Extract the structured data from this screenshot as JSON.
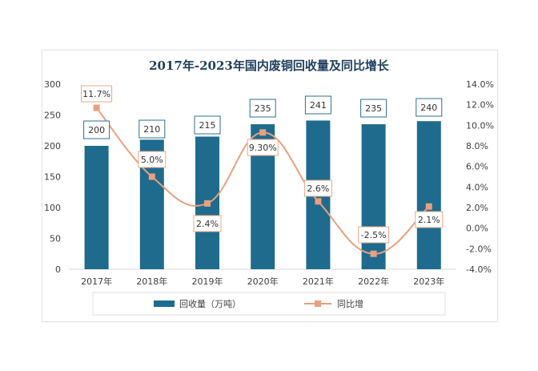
{
  "chart_data": {
    "type": "bar+line",
    "title": "2017年-2023年国内废铜回收量及同比增长",
    "categories": [
      "2017年",
      "2018年",
      "2019年",
      "2020年",
      "2021年",
      "2022年",
      "2023年"
    ],
    "series": [
      {
        "name": "回收量（万吨）",
        "type": "bar",
        "axis": "left",
        "values": [
          200,
          210,
          215,
          235,
          241,
          235,
          240
        ],
        "labels": [
          "200",
          "210",
          "215",
          "235",
          "241",
          "235",
          "240"
        ],
        "color": "#1f6b8e"
      },
      {
        "name": "同比增",
        "type": "line",
        "axis": "right",
        "values": [
          11.7,
          5.0,
          2.4,
          9.3,
          2.6,
          -2.5,
          2.1
        ],
        "labels": [
          "11.7%",
          "5.0%",
          "2.4%",
          "9.30%",
          "2.6%",
          "-2.5%",
          "2.1%"
        ],
        "color": "#e8a080"
      }
    ],
    "y_left": {
      "range": [
        0,
        300
      ],
      "ticks": [
        "0",
        "50",
        "100",
        "150",
        "200",
        "250",
        "300"
      ]
    },
    "y_right": {
      "range": [
        -4,
        14
      ],
      "ticks": [
        "-4.0%",
        "-2.0%",
        "0.0%",
        "2.0%",
        "4.0%",
        "6.0%",
        "8.0%",
        "10.0%",
        "12.0%",
        "14.0%"
      ]
    },
    "grid": false,
    "legend": "bottom"
  }
}
